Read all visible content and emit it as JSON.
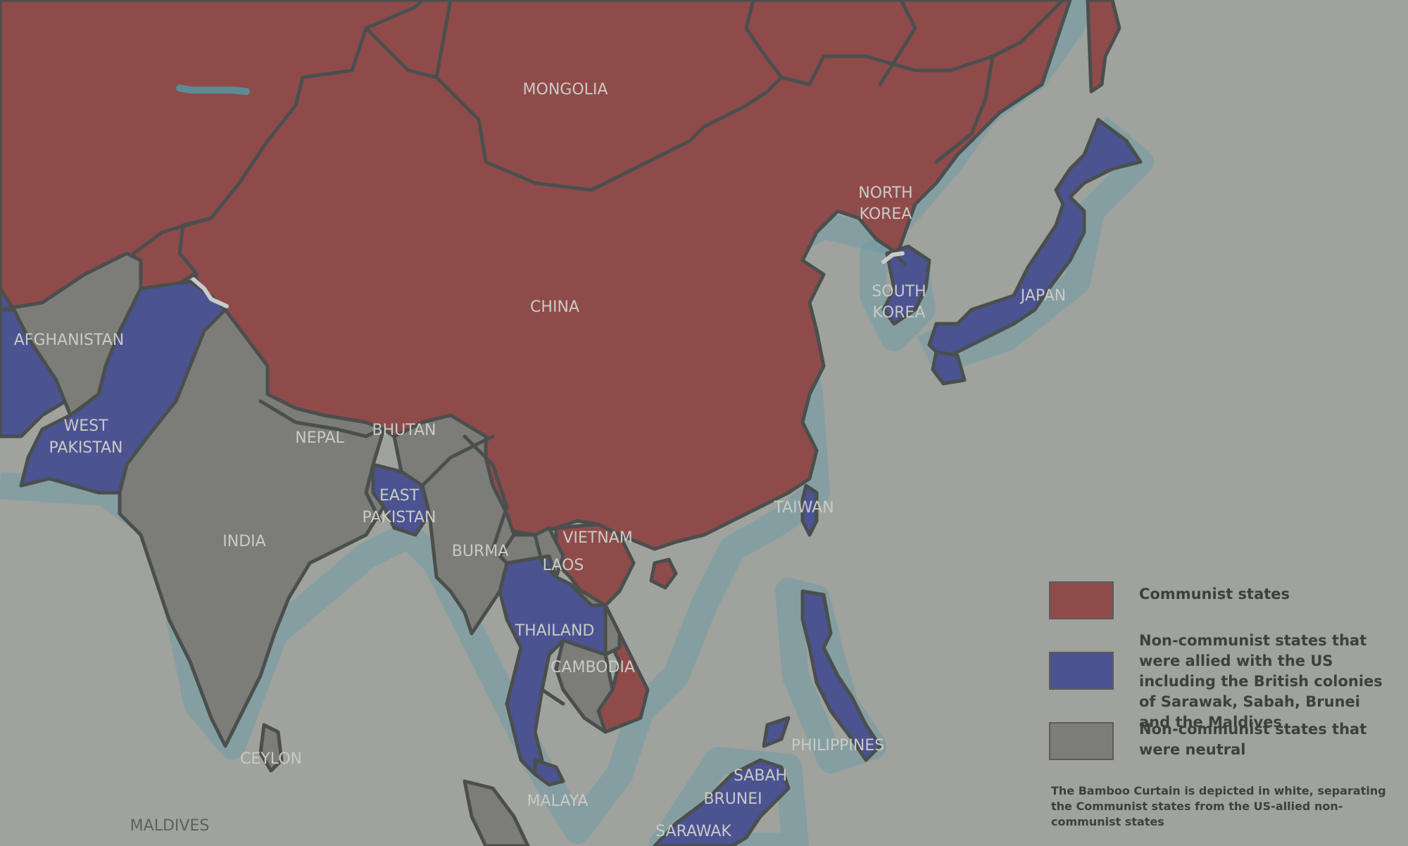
{
  "map": {
    "labels": [
      {
        "id": "mongolia",
        "lines": [
          "MONGOLIA"
        ]
      },
      {
        "id": "china",
        "lines": [
          "CHINA"
        ]
      },
      {
        "id": "north-korea",
        "lines": [
          "NORTH",
          "KOREA"
        ]
      },
      {
        "id": "south-korea",
        "lines": [
          "SOUTH",
          "KOREA"
        ]
      },
      {
        "id": "japan",
        "lines": [
          "JAPAN"
        ]
      },
      {
        "id": "afghanistan",
        "lines": [
          "AFGHANISTAN"
        ]
      },
      {
        "id": "west-pakistan",
        "lines": [
          "WEST",
          "PAKISTAN"
        ]
      },
      {
        "id": "nepal",
        "lines": [
          "NEPAL"
        ]
      },
      {
        "id": "bhutan",
        "lines": [
          "BHUTAN"
        ]
      },
      {
        "id": "east-pakistan",
        "lines": [
          "EAST",
          "PAKISTAN"
        ]
      },
      {
        "id": "india",
        "lines": [
          "INDIA"
        ]
      },
      {
        "id": "burma",
        "lines": [
          "BURMA"
        ]
      },
      {
        "id": "vietnam",
        "lines": [
          "VIETNAM"
        ]
      },
      {
        "id": "laos",
        "lines": [
          "LAOS"
        ]
      },
      {
        "id": "thailand",
        "lines": [
          "THAILAND"
        ]
      },
      {
        "id": "cambodia",
        "lines": [
          "CAMBODIA"
        ]
      },
      {
        "id": "taiwan",
        "lines": [
          "TAIWAN"
        ]
      },
      {
        "id": "philippines",
        "lines": [
          "PHILIPPINES"
        ]
      },
      {
        "id": "ceylon",
        "lines": [
          "CEYLON"
        ]
      },
      {
        "id": "malaya",
        "lines": [
          "MALAYA"
        ]
      },
      {
        "id": "sabah",
        "lines": [
          "SABAH"
        ]
      },
      {
        "id": "brunei",
        "lines": [
          "BRUNEI"
        ]
      },
      {
        "id": "sarawak",
        "lines": [
          "SARAWAK"
        ]
      },
      {
        "id": "maldives",
        "lines": [
          "MALDIVES"
        ]
      }
    ]
  },
  "legend": {
    "items": [
      {
        "key": "communist",
        "label": "Communist states",
        "color": "#8f4b4a"
      },
      {
        "key": "us-allied",
        "label": "Non-communist states that were allied with the US including the British colonies of Sarawak, Sabah, Brunei and the Maldives",
        "color": "#4b5391"
      },
      {
        "key": "neutral",
        "label": "Non-communist states that were neutral",
        "color": "#7c7d79"
      }
    ],
    "note": "The Bamboo Curtain is depicted in white, separating the Communist states from the US-allied non-communist states"
  },
  "colors": {
    "sea": "#9fa29d",
    "communist": "#8f4b4a",
    "us_allied": "#4b5391",
    "neutral": "#7c7d79",
    "border": "#4a4f4e",
    "bamboo_curtain": "#c8cbcc"
  }
}
